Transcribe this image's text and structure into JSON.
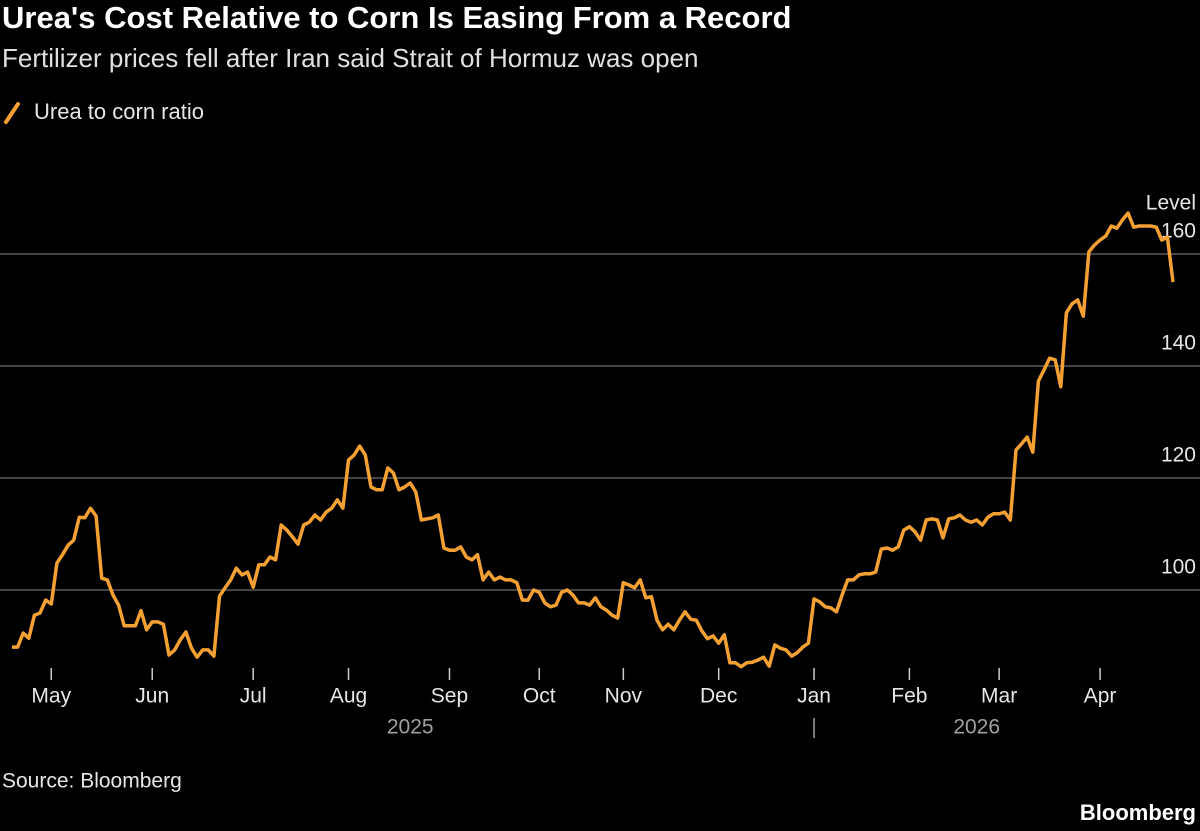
{
  "chart_data": {
    "type": "line",
    "title": "Urea's Cost Relative to Corn Is Easing From a Record",
    "subtitle": "Fertilizer prices fell after Iran said Strait of Hormuz was open",
    "y_axis_label": "Level",
    "source": "Source: Bloomberg",
    "brand": "Bloomberg",
    "legend": "top-left",
    "grid": true,
    "series": [
      {
        "name": "Urea to corn ratio",
        "color": "#f5a033",
        "values": [
          89.8,
          89.8,
          92.3,
          91.4,
          95.5,
          95.9,
          98.2,
          97.5,
          104.8,
          106.3,
          108.0,
          108.9,
          113.0,
          112.9,
          114.6,
          113.2,
          102.1,
          101.8,
          99.1,
          97.3,
          93.6,
          93.6,
          93.6,
          96.3,
          92.9,
          94.3,
          94.3,
          93.9,
          88.4,
          89.3,
          91.1,
          92.5,
          89.6,
          88.0,
          89.3,
          89.3,
          88.2,
          98.9,
          100.4,
          101.8,
          103.9,
          102.7,
          103.2,
          100.5,
          104.5,
          104.5,
          105.9,
          105.4,
          111.6,
          110.7,
          109.5,
          108.2,
          111.6,
          112.1,
          113.4,
          112.5,
          113.9,
          114.6,
          116.1,
          114.6,
          123.2,
          124.1,
          125.7,
          124.1,
          118.4,
          117.9,
          117.9,
          121.8,
          120.9,
          117.9,
          118.4,
          119.1,
          117.5,
          112.5,
          112.7,
          112.9,
          113.4,
          107.5,
          107.1,
          107.1,
          107.7,
          105.9,
          105.4,
          106.3,
          101.8,
          103.2,
          101.8,
          102.3,
          101.8,
          101.8,
          101.3,
          98.2,
          98.2,
          100.0,
          99.6,
          97.7,
          97.0,
          97.3,
          99.6,
          100.0,
          99.1,
          97.7,
          97.7,
          97.3,
          98.6,
          97.0,
          96.4,
          95.5,
          95.0,
          101.3,
          100.9,
          100.4,
          101.8,
          98.6,
          98.8,
          94.6,
          92.9,
          93.9,
          92.9,
          94.6,
          96.1,
          94.8,
          94.6,
          92.7,
          91.3,
          91.8,
          90.5,
          92.0,
          87.0,
          87.0,
          86.3,
          87.0,
          87.1,
          87.5,
          88.0,
          86.4,
          90.2,
          89.6,
          89.3,
          88.2,
          88.8,
          89.8,
          90.5,
          98.4,
          97.9,
          97.0,
          96.8,
          96.1,
          99.1,
          101.8,
          101.8,
          102.7,
          102.9,
          102.9,
          103.2,
          107.3,
          107.5,
          107.1,
          107.7,
          110.7,
          111.3,
          110.4,
          108.9,
          112.5,
          112.7,
          112.5,
          109.3,
          112.7,
          112.9,
          113.4,
          112.5,
          112.1,
          112.5,
          111.6,
          113.0,
          113.6,
          113.6,
          113.9,
          112.5,
          125.0,
          126.1,
          127.3,
          124.6,
          137.3,
          139.3,
          141.4,
          141.1,
          136.3,
          149.5,
          151.1,
          151.8,
          148.9,
          160.4,
          161.6,
          162.5,
          163.2,
          165.0,
          164.6,
          166.1,
          167.3,
          164.8,
          165.0,
          165.0,
          165.0,
          164.8,
          162.5,
          163.0,
          155.0
        ]
      }
    ],
    "xticks": [
      {
        "value": 7,
        "label": "May"
      },
      {
        "value": 25,
        "label": "Jun"
      },
      {
        "value": 43,
        "label": "Jul"
      },
      {
        "value": 60,
        "label": "Aug"
      },
      {
        "value": 78,
        "label": "Sep"
      },
      {
        "value": 94,
        "label": "Oct"
      },
      {
        "value": 109,
        "label": "Nov"
      },
      {
        "value": 126,
        "label": "Dec"
      },
      {
        "value": 143,
        "label": "Jan"
      },
      {
        "value": 160,
        "label": "Feb"
      },
      {
        "value": 176,
        "label": "Mar"
      },
      {
        "value": 194,
        "label": "Apr"
      }
    ],
    "years": [
      {
        "value": 71,
        "label": "2025"
      },
      {
        "value": 172,
        "label": "2026"
      }
    ],
    "ylim": [
      84,
      170
    ],
    "yticks": [
      100,
      120,
      140,
      160
    ]
  }
}
